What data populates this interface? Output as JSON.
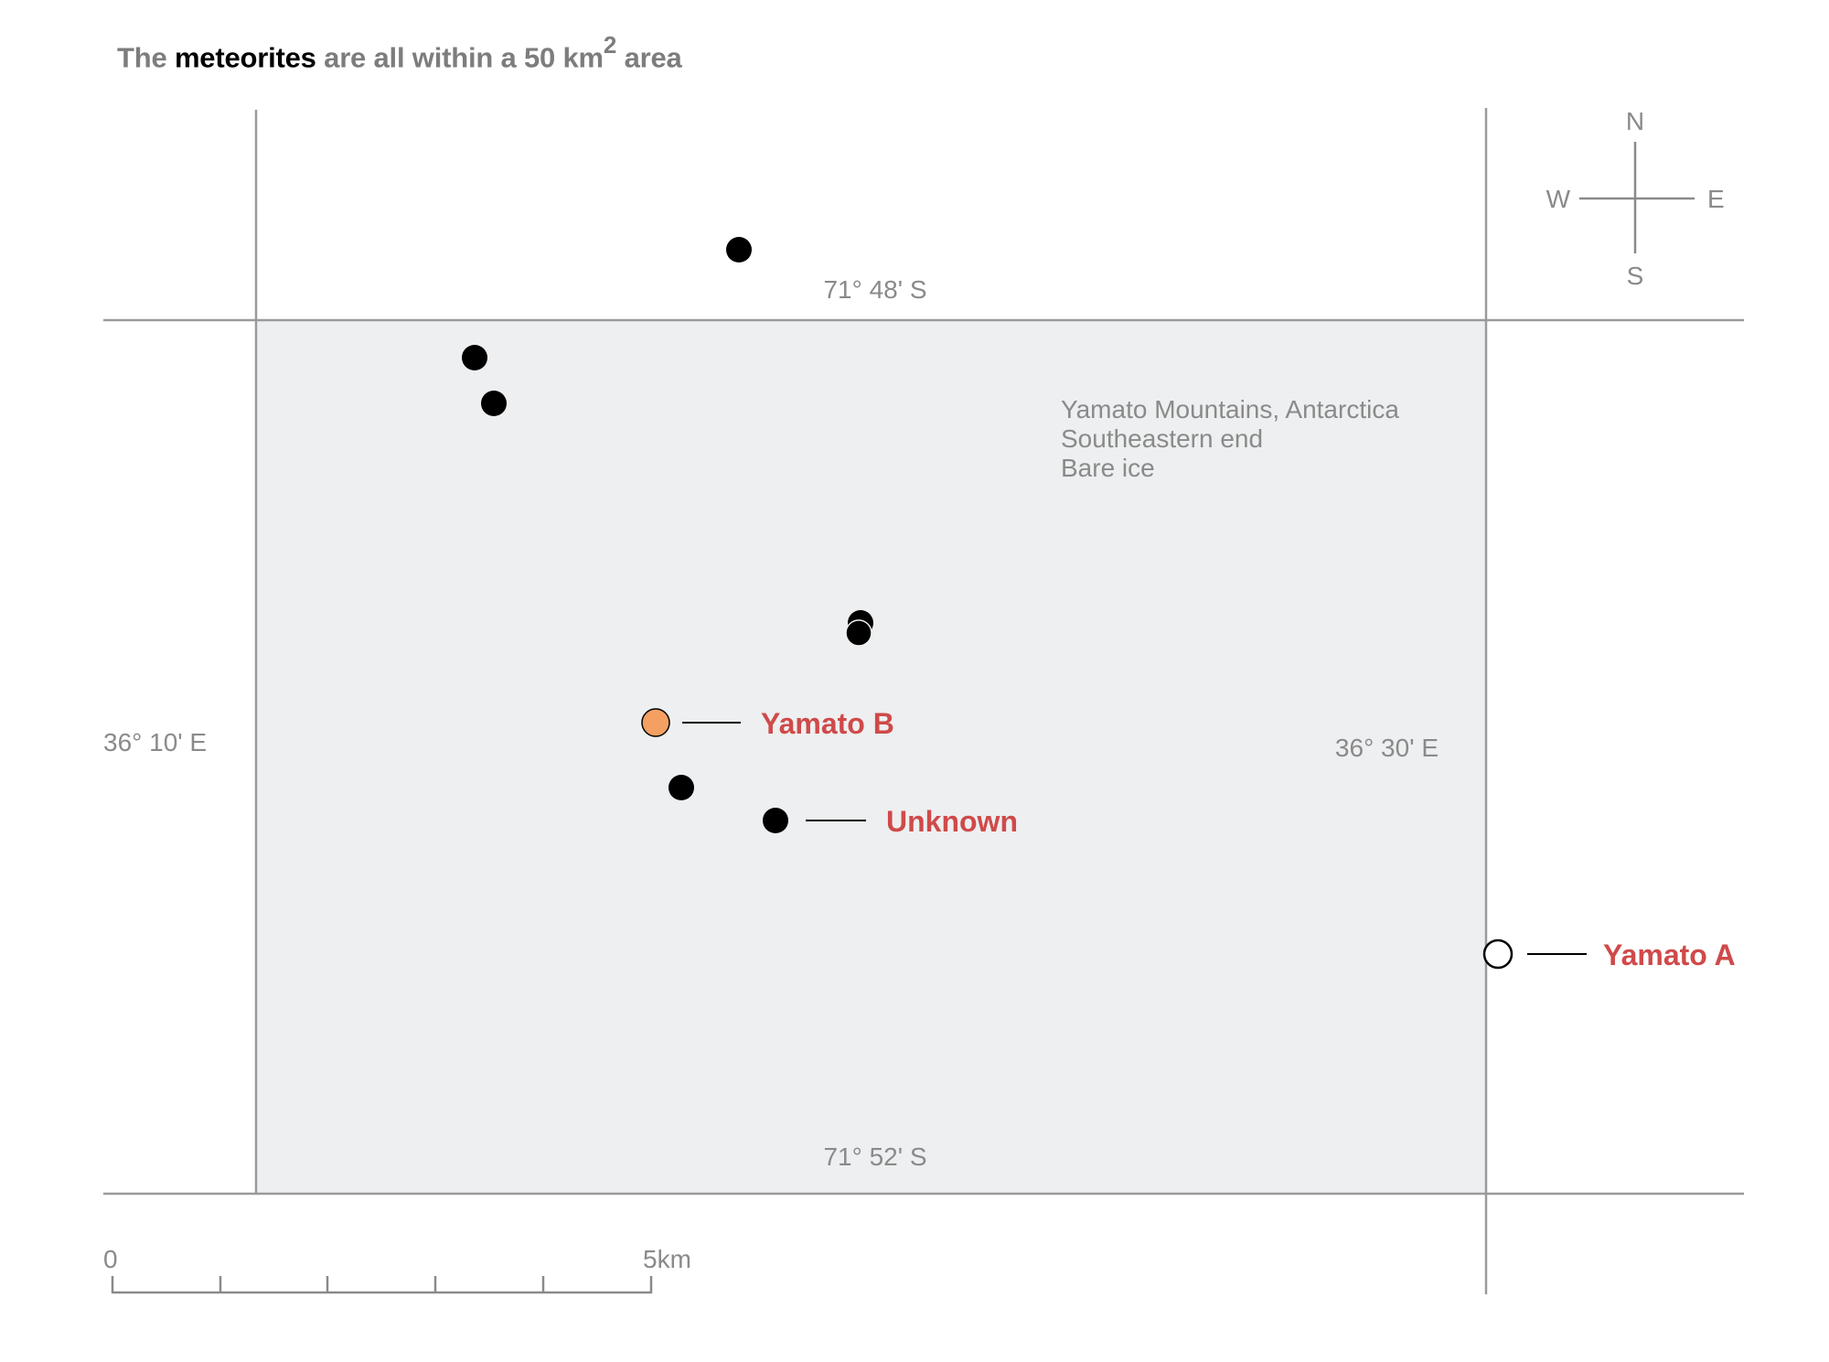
{
  "title": {
    "prefix": "The",
    "emphasis": "meteorites",
    "middle": "are all within a 50 km",
    "superscript": "2",
    "suffix": "area"
  },
  "colors": {
    "region_fill": "#eeeff0",
    "grid_line": "#9a9a9a",
    "label_grey": "#8a8a8a",
    "label_red": "#cf4a4a",
    "highlight_point": "#f3a062",
    "point": "#000000"
  },
  "compass": {
    "north": "N",
    "south": "S",
    "east": "E",
    "west": "W"
  },
  "coordinates": {
    "north_lat": "71° 48'  S",
    "south_lat": "71° 52'  S",
    "west_lon": "36° 10' E",
    "east_lon": "36° 30' E"
  },
  "region_note": {
    "line1": "Yamato Mountains, Antarctica",
    "line2": "Southeastern end",
    "line3": "Bare ice"
  },
  "callouts": {
    "yamato_b": "Yamato B",
    "unknown": "Unknown",
    "yamato_a": "Yamato A"
  },
  "scale_bar": {
    "start_label": "0",
    "end_label": "5km",
    "divisions": 5
  },
  "meteorites": [
    {
      "id": "m1",
      "style": "filled"
    },
    {
      "id": "m2",
      "style": "filled"
    },
    {
      "id": "m3",
      "style": "filled"
    },
    {
      "id": "m4",
      "style": "filled"
    },
    {
      "id": "m5",
      "style": "filled"
    },
    {
      "id": "yamato-b",
      "style": "highlight"
    },
    {
      "id": "m6",
      "style": "filled"
    },
    {
      "id": "unknown",
      "style": "filled"
    },
    {
      "id": "yamato-a",
      "style": "open"
    }
  ]
}
